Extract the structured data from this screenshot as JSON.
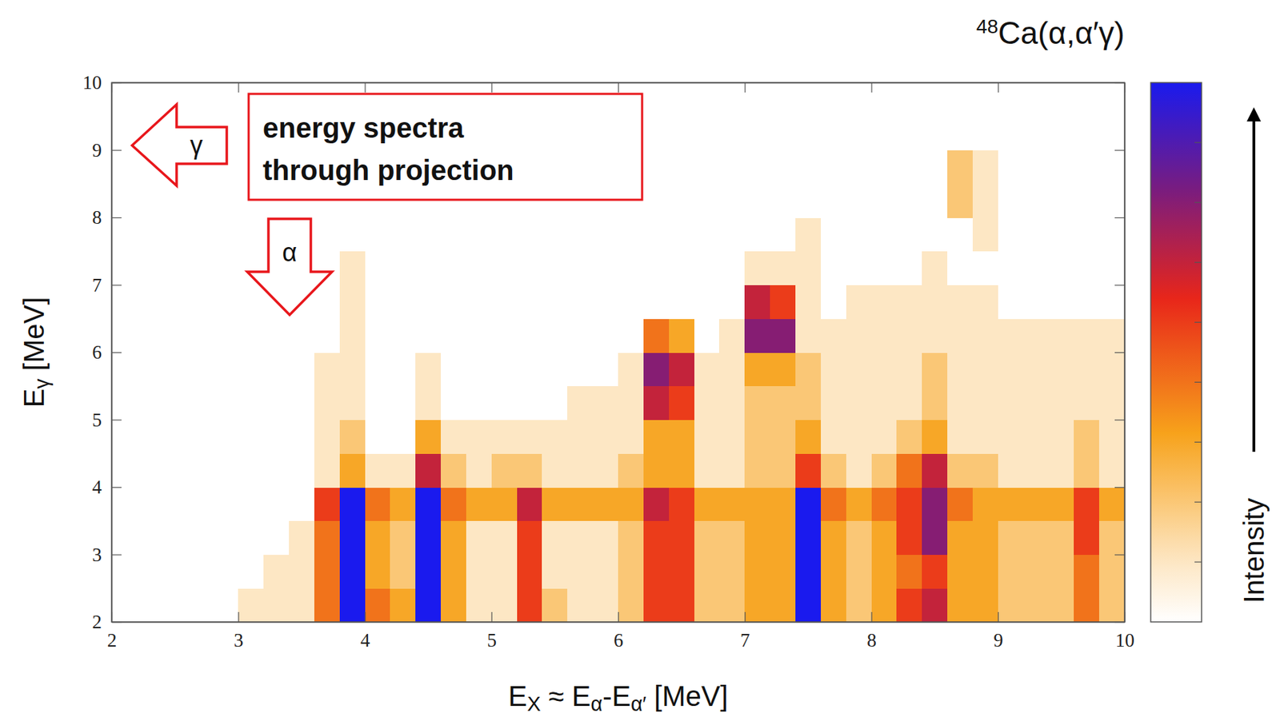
{
  "chart_data": {
    "type": "heatmap",
    "title": "48Ca(α,α′γ)",
    "x_label": "EX ≈ Eα-Eα′ [MeV]",
    "y_label": "Eγ [MeV]",
    "xlim": [
      2,
      10
    ],
    "ylim": [
      2,
      10
    ],
    "xticks": [
      2,
      3,
      4,
      5,
      6,
      7,
      8,
      9,
      10
    ],
    "yticks": [
      2,
      3,
      4,
      5,
      6,
      7,
      8,
      9,
      10
    ],
    "grid": false,
    "annotations": {
      "box": [
        "energy spectra",
        "through projection"
      ],
      "gamma_arrow": "γ",
      "alpha_arrow": "α"
    },
    "colorbar": {
      "label": "Intensity",
      "range": [
        0,
        9
      ],
      "ticks": [
        1,
        2,
        3,
        4,
        5,
        6,
        7,
        8
      ]
    },
    "x_bins": [
      2,
      2.2,
      2.4,
      2.6,
      2.8,
      3,
      3.2,
      3.4,
      3.6,
      3.8,
      4,
      4.2,
      4.4,
      4.6,
      4.8,
      5,
      5.2,
      5.4,
      5.6,
      5.8,
      6,
      6.2,
      6.4,
      6.6,
      6.8,
      7,
      7.2,
      7.4,
      7.6,
      7.8,
      8,
      8.2,
      8.4,
      8.6,
      8.8,
      9,
      9.2,
      9.4,
      9.6,
      9.8,
      10
    ],
    "y_bins": [
      2,
      2.5,
      3,
      3.5,
      4,
      4.5,
      5,
      5.5,
      6,
      6.5,
      7,
      7.5,
      8,
      8.5,
      9,
      9.5,
      10
    ],
    "cells": [
      [
        0,
        0,
        0,
        0,
        0,
        1,
        1,
        1,
        4,
        9,
        4,
        3,
        9,
        3,
        1,
        1,
        5,
        2,
        1,
        1,
        2,
        5,
        5,
        2,
        2,
        3,
        3,
        9,
        3,
        2,
        3,
        5,
        6,
        3,
        3,
        2,
        2,
        2,
        4,
        2
      ],
      [
        0,
        0,
        0,
        0,
        0,
        0,
        1,
        1,
        4,
        9,
        3,
        2,
        9,
        3,
        1,
        1,
        5,
        1,
        1,
        1,
        2,
        5,
        5,
        2,
        2,
        3,
        3,
        9,
        3,
        2,
        3,
        4,
        5,
        3,
        3,
        2,
        2,
        2,
        4,
        2
      ],
      [
        0,
        0,
        0,
        0,
        0,
        0,
        0,
        1,
        4,
        9,
        3,
        2,
        9,
        3,
        1,
        1,
        5,
        1,
        1,
        1,
        2,
        5,
        5,
        2,
        2,
        3,
        3,
        9,
        3,
        2,
        3,
        5,
        7,
        3,
        3,
        2,
        2,
        2,
        5,
        2
      ],
      [
        0,
        0,
        0,
        0,
        0,
        0,
        0,
        0,
        5,
        9,
        4,
        3,
        9,
        4,
        3,
        3,
        6,
        3,
        3,
        3,
        3,
        6,
        5,
        3,
        3,
        3,
        3,
        9,
        4,
        3,
        4,
        5,
        7,
        4,
        3,
        3,
        3,
        3,
        5,
        3
      ],
      [
        0,
        0,
        0,
        0,
        0,
        0,
        0,
        0,
        1,
        3,
        1,
        1,
        6,
        2,
        1,
        2,
        2,
        1,
        1,
        1,
        2,
        3,
        3,
        1,
        1,
        2,
        2,
        5,
        2,
        1,
        2,
        4,
        6,
        2,
        2,
        1,
        1,
        1,
        2,
        1
      ],
      [
        0,
        0,
        0,
        0,
        0,
        0,
        0,
        0,
        1,
        2,
        0,
        0,
        3,
        1,
        1,
        1,
        1,
        1,
        1,
        1,
        1,
        3,
        3,
        1,
        1,
        2,
        2,
        3,
        1,
        1,
        1,
        2,
        3,
        1,
        1,
        1,
        1,
        1,
        2,
        1
      ],
      [
        0,
        0,
        0,
        0,
        0,
        0,
        0,
        0,
        1,
        1,
        0,
        0,
        1,
        0,
        0,
        0,
        0,
        0,
        1,
        1,
        1,
        6,
        5,
        1,
        1,
        2,
        2,
        2,
        1,
        1,
        1,
        1,
        2,
        1,
        1,
        1,
        1,
        1,
        1,
        1
      ],
      [
        0,
        0,
        0,
        0,
        0,
        0,
        0,
        0,
        1,
        1,
        0,
        0,
        1,
        0,
        0,
        0,
        0,
        0,
        0,
        0,
        1,
        7,
        6,
        1,
        1,
        3,
        3,
        2,
        1,
        1,
        1,
        1,
        2,
        1,
        1,
        1,
        1,
        1,
        1,
        1
      ],
      [
        0,
        0,
        0,
        0,
        0,
        0,
        0,
        0,
        0,
        1,
        0,
        0,
        0,
        0,
        0,
        0,
        0,
        0,
        0,
        0,
        0,
        4,
        3,
        0,
        1,
        7,
        7,
        1,
        1,
        1,
        1,
        1,
        1,
        1,
        1,
        1,
        1,
        1,
        1,
        1
      ],
      [
        0,
        0,
        0,
        0,
        0,
        0,
        0,
        0,
        0,
        1,
        0,
        0,
        0,
        0,
        0,
        0,
        0,
        0,
        0,
        0,
        0,
        0,
        0,
        0,
        0,
        6,
        5,
        1,
        0,
        1,
        1,
        1,
        1,
        1,
        1,
        0,
        0,
        0,
        0,
        0
      ],
      [
        0,
        0,
        0,
        0,
        0,
        0,
        0,
        0,
        0,
        1,
        0,
        0,
        0,
        0,
        0,
        0,
        0,
        0,
        0,
        0,
        0,
        0,
        0,
        0,
        0,
        1,
        1,
        1,
        0,
        0,
        0,
        0,
        1,
        0,
        0,
        0,
        0,
        0,
        0,
        0
      ],
      [
        0,
        0,
        0,
        0,
        0,
        0,
        0,
        0,
        0,
        0,
        0,
        0,
        0,
        0,
        0,
        0,
        0,
        0,
        0,
        0,
        0,
        0,
        0,
        0,
        0,
        0,
        0,
        1,
        0,
        0,
        0,
        0,
        0,
        0,
        1,
        0,
        0,
        0,
        0,
        0
      ],
      [
        0,
        0,
        0,
        0,
        0,
        0,
        0,
        0,
        0,
        0,
        0,
        0,
        0,
        0,
        0,
        0,
        0,
        0,
        0,
        0,
        0,
        0,
        0,
        0,
        0,
        0,
        0,
        0,
        0,
        0,
        0,
        0,
        0,
        2,
        1,
        0,
        0,
        0,
        0,
        0
      ],
      [
        0,
        0,
        0,
        0,
        0,
        0,
        0,
        0,
        0,
        0,
        0,
        0,
        0,
        0,
        0,
        0,
        0,
        0,
        0,
        0,
        0,
        0,
        0,
        0,
        0,
        0,
        0,
        0,
        0,
        0,
        0,
        0,
        0,
        2,
        1,
        0,
        0,
        0,
        0,
        0
      ],
      [
        0,
        0,
        0,
        0,
        0,
        0,
        0,
        0,
        0,
        0,
        0,
        0,
        0,
        0,
        0,
        0,
        0,
        0,
        0,
        0,
        0,
        0,
        0,
        0,
        0,
        0,
        0,
        0,
        0,
        0,
        0,
        0,
        0,
        0,
        0,
        0,
        0,
        0,
        0,
        0
      ],
      [
        0,
        0,
        0,
        0,
        0,
        0,
        0,
        0,
        0,
        0,
        0,
        0,
        0,
        0,
        0,
        0,
        0,
        0,
        0,
        0,
        0,
        0,
        0,
        0,
        0,
        0,
        0,
        0,
        0,
        0,
        0,
        0,
        0,
        0,
        0,
        0,
        0,
        0,
        0,
        0
      ]
    ]
  }
}
